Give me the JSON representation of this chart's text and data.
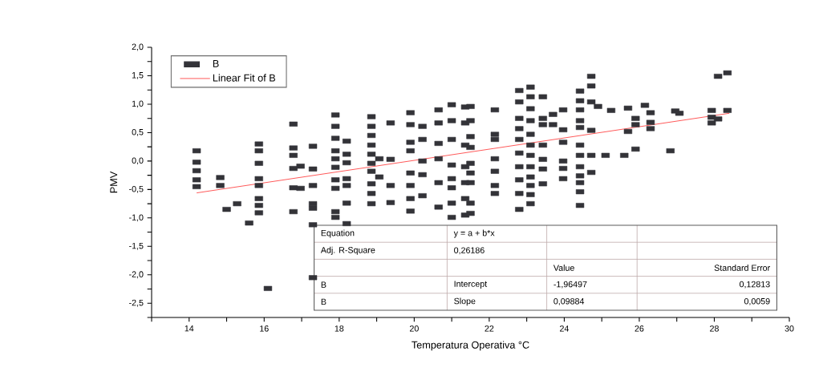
{
  "chart_data": {
    "type": "scatter",
    "xlabel": "Temperatura Operativa °C",
    "ylabel": "PMV",
    "xlim": [
      13,
      30
    ],
    "ylim": [
      -2.75,
      2.0
    ],
    "xticks": [
      {
        "value": 13,
        "label": null
      },
      14,
      {
        "value": 15,
        "label": null
      },
      16,
      {
        "value": 17,
        "label": null
      },
      18,
      {
        "value": 19,
        "label": null
      },
      20,
      {
        "value": 21,
        "label": null
      },
      22,
      {
        "value": 23,
        "label": null
      },
      24,
      {
        "value": 25,
        "label": null
      },
      26,
      {
        "value": 27,
        "label": null
      },
      28,
      {
        "value": 29,
        "label": null
      },
      30
    ],
    "yticks": [
      {
        "value": -2.75,
        "label": null
      },
      {
        "value": -2.5,
        "label": "-2,5"
      },
      {
        "value": -2.25,
        "label": null
      },
      {
        "value": -2.0,
        "label": "-2,0"
      },
      {
        "value": -1.75,
        "label": null
      },
      {
        "value": -1.5,
        "label": "-1,5"
      },
      {
        "value": -1.25,
        "label": null
      },
      {
        "value": -1.0,
        "label": "-1,0"
      },
      {
        "value": -0.75,
        "label": null
      },
      {
        "value": -0.5,
        "label": "-0,5"
      },
      {
        "value": -0.25,
        "label": null
      },
      {
        "value": 0.0,
        "label": "0,0"
      },
      {
        "value": 0.25,
        "label": null
      },
      {
        "value": 0.5,
        "label": "0,5"
      },
      {
        "value": 0.75,
        "label": null
      },
      {
        "value": 1.0,
        "label": "1,0"
      },
      {
        "value": 1.25,
        "label": null
      },
      {
        "value": 1.5,
        "label": "1,5"
      },
      {
        "value": 1.75,
        "label": null
      },
      {
        "value": 2.0,
        "label": "2,0"
      }
    ],
    "legend": "top left",
    "series": [
      {
        "name": "B",
        "marker": "square",
        "color": "#333338",
        "x": [
          14.2,
          14.2,
          14.2,
          14.2,
          14.2,
          14.83,
          14.83,
          15.0,
          15.28,
          15.6,
          15.86,
          15.86,
          15.86,
          15.86,
          15.86,
          15.86,
          15.86,
          15.86,
          16.1,
          16.78,
          16.78,
          16.78,
          16.78,
          16.78,
          16.78,
          16.97,
          16.97,
          17.3,
          17.3,
          17.3,
          17.3,
          17.3,
          17.3,
          17.3,
          17.9,
          17.9,
          17.9,
          17.9,
          17.9,
          17.9,
          17.9,
          17.9,
          17.9,
          17.9,
          18.2,
          18.2,
          18.2,
          18.2,
          18.2,
          18.2,
          18.2,
          18.86,
          18.86,
          18.86,
          18.86,
          18.86,
          18.86,
          18.86,
          18.86,
          18.86,
          18.86,
          19.07,
          19.07,
          19.37,
          19.37,
          19.37,
          19.37,
          19.9,
          19.9,
          19.9,
          19.9,
          19.9,
          19.9,
          19.9,
          19.9,
          20.22,
          20.22,
          20.22,
          20.22,
          20.22,
          20.65,
          20.65,
          20.65,
          20.65,
          20.65,
          20.65,
          21.0,
          21.0,
          21.0,
          21.0,
          21.0,
          21.0,
          21.0,
          21.0,
          21.36,
          21.36,
          21.36,
          21.36,
          21.36,
          21.36,
          21.36,
          21.5,
          21.5,
          21.5,
          21.5,
          21.5,
          21.5,
          21.5,
          21.5,
          21.5,
          22.15,
          22.15,
          22.15,
          22.15,
          22.15,
          22.15,
          22.15,
          22.8,
          22.8,
          22.8,
          22.8,
          22.8,
          22.8,
          22.8,
          22.8,
          22.8,
          22.8,
          23.1,
          23.1,
          23.1,
          23.1,
          23.1,
          23.1,
          23.1,
          23.1,
          23.1,
          23.1,
          23.1,
          23.1,
          23.43,
          23.43,
          23.43,
          23.43,
          23.43,
          23.43,
          23.43,
          23.7,
          23.7,
          23.97,
          23.97,
          23.97,
          23.97,
          23.97,
          23.97,
          24.42,
          24.42,
          24.42,
          24.42,
          24.42,
          24.42,
          24.42,
          24.42,
          24.42,
          24.42,
          24.42,
          24.42,
          24.72,
          24.72,
          24.72,
          24.72,
          24.72,
          24.72,
          24.9,
          25.1,
          25.25,
          25.6,
          25.7,
          25.7,
          25.9,
          25.9,
          25.9,
          26.15,
          26.3,
          26.3,
          26.3,
          26.83,
          26.96,
          27.07,
          27.93,
          27.93,
          27.93,
          28.1,
          28.1,
          28.35,
          28.35
        ],
        "values": [
          0.18,
          -0.02,
          -0.17,
          -0.33,
          -0.45,
          -0.29,
          -0.43,
          -0.85,
          -0.75,
          -1.09,
          0.3,
          0.18,
          -0.04,
          -0.31,
          -0.43,
          -0.66,
          -0.78,
          -0.91,
          -2.24,
          0.65,
          0.23,
          0.1,
          -0.13,
          -0.47,
          -0.89,
          -0.09,
          -0.48,
          0.26,
          -0.14,
          -0.43,
          -0.75,
          -0.83,
          -1.12,
          -2.05,
          0.81,
          0.61,
          0.4,
          0.18,
          0.04,
          -0.11,
          -0.33,
          -0.48,
          -0.89,
          -0.99,
          0.35,
          0.12,
          -0.03,
          -0.31,
          -0.43,
          -0.74,
          -1.1,
          0.78,
          0.61,
          0.45,
          0.28,
          0.12,
          -0.04,
          -0.18,
          -0.4,
          -0.57,
          -0.75,
          -0.28,
          0.04,
          0.67,
          0.03,
          -0.43,
          -0.73,
          0.85,
          0.64,
          0.33,
          0.18,
          -0.21,
          -0.43,
          -0.66,
          -0.88,
          0.61,
          0.38,
          0.0,
          -0.24,
          -0.61,
          0.9,
          0.67,
          0.31,
          0.04,
          -0.38,
          -0.81,
          0.99,
          0.71,
          0.38,
          -0.07,
          -0.31,
          -0.47,
          -0.74,
          -0.99,
          0.95,
          0.67,
          0.28,
          -0.1,
          -0.38,
          -0.66,
          -0.95,
          0.96,
          0.71,
          0.43,
          0.24,
          -0.04,
          -0.21,
          -0.38,
          -0.74,
          -0.92,
          0.9,
          0.47,
          0.38,
          0.04,
          -0.18,
          -0.43,
          -0.57,
          1.24,
          1.04,
          0.75,
          0.57,
          0.38,
          0.14,
          -0.1,
          -0.33,
          -0.57,
          -0.85,
          1.3,
          1.13,
          0.92,
          0.71,
          0.47,
          0.28,
          0.1,
          -0.1,
          -0.28,
          -0.43,
          -0.59,
          -0.75,
          1.13,
          0.75,
          0.64,
          0.28,
          0.03,
          -0.14,
          -0.4,
          0.82,
          0.64,
          0.9,
          0.55,
          0.33,
          0.0,
          -0.13,
          -0.31,
          1.23,
          1.06,
          0.9,
          0.71,
          0.59,
          0.28,
          0.1,
          -0.1,
          -0.26,
          -0.38,
          -0.54,
          -0.78,
          1.49,
          1.32,
          1.04,
          0.54,
          0.1,
          -0.2,
          0.96,
          0.1,
          0.89,
          0.1,
          0.93,
          0.52,
          0.75,
          0.64,
          0.21,
          0.98,
          0.85,
          0.68,
          0.57,
          0.18,
          0.88,
          0.84,
          0.89,
          0.77,
          0.67,
          1.49,
          0.74,
          1.55,
          0.89
        ]
      },
      {
        "name": "Linear Fit of B",
        "type": "line",
        "color": "#ff3030",
        "x": [
          14.2,
          28.4
        ],
        "values": [
          -0.56,
          0.84
        ]
      }
    ],
    "annotations": [
      "Equation",
      "y = a + b*x",
      "Adj. R-Square",
      "0,26186",
      "Value",
      "Standard Error",
      "B",
      "Intercept",
      "-1,96497",
      "0,12813",
      "B",
      "Slope",
      "0,09884",
      "0,0059"
    ]
  }
}
